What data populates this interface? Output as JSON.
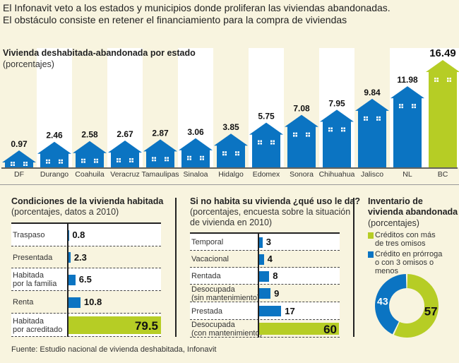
{
  "headline": [
    "El Infonavit veto a los estados y municipios donde proliferan las viviendas abandonadas.",
    "El obstáculo consiste en retener el financiamiento para la compra de viviendas"
  ],
  "colors": {
    "blue": "#0b74c2",
    "green": "#b6cd25",
    "background": "#f8f4df"
  },
  "chart_data": [
    {
      "type": "bar",
      "title": "Vivienda deshabitada-abandonada por estado",
      "subtitle": "(porcentajes)",
      "categories": [
        "DF",
        "Durango",
        "Coahuila",
        "Veracruz",
        "Tamaulipas",
        "Sinaloa",
        "Hidalgo",
        "Edomex",
        "Sonora",
        "Chihuahua",
        "Jalisco",
        "NL",
        "BC"
      ],
      "values": [
        0.97,
        2.46,
        2.58,
        2.67,
        2.87,
        3.06,
        3.85,
        5.75,
        7.08,
        7.95,
        9.84,
        11.98,
        16.49
      ],
      "labels": [
        "0.97",
        "2.46",
        "2.58",
        "2.67",
        "2.87",
        "3.06",
        "3.85",
        "5.75",
        "7.08",
        "7.95",
        "9.84",
        "11.98",
        "16.49"
      ],
      "highlight": "BC",
      "mark_shape": "house"
    },
    {
      "type": "bar",
      "orientation": "horizontal",
      "title": "Condiciones de la vivienda habitada",
      "subtitle": "(porcentajes, datos a 2010)",
      "categories": [
        "Traspaso",
        "Presentada",
        "Habitada|por la familia",
        "Renta",
        "Habitada|por acreditado"
      ],
      "values": [
        0.8,
        2.3,
        6.5,
        10.8,
        79.5
      ],
      "labels": [
        "0.8",
        "2.3",
        "6.5",
        "10.8",
        "79.5"
      ],
      "highlight": "Habitada|por acreditado"
    },
    {
      "type": "bar",
      "orientation": "horizontal",
      "title": "Si no habita su vivienda ¿qué uso le da?",
      "subtitle": "(porcentajes, encuesta sobre la situación|de vivienda en 2010)",
      "categories": [
        "Temporal",
        "Vacacional",
        "Rentada",
        "Desocupada|(sin mantenimiento)",
        "Prestada",
        "Desocupada|(con mantenimiento)"
      ],
      "values": [
        3,
        4,
        8,
        9,
        17,
        60
      ],
      "labels": [
        "3",
        "4",
        "8",
        "9",
        "17",
        "60"
      ],
      "highlight": "Desocupada|(con mantenimiento)"
    },
    {
      "type": "pie",
      "donut": true,
      "title": "Inventario de|vivienda abandonada",
      "subtitle": "(porcentajes)",
      "series": [
        {
          "name": "Créditos con más|de tres omisos",
          "value": 57,
          "label": "57",
          "color": "#b6cd25"
        },
        {
          "name": "Crédito en prórroga|o con 3 omisos o|menos",
          "value": 43,
          "label": "43",
          "color": "#0b74c2"
        }
      ]
    }
  ],
  "source": "Fuente: Estudio nacional de vivienda deshabitada, Infonavit"
}
